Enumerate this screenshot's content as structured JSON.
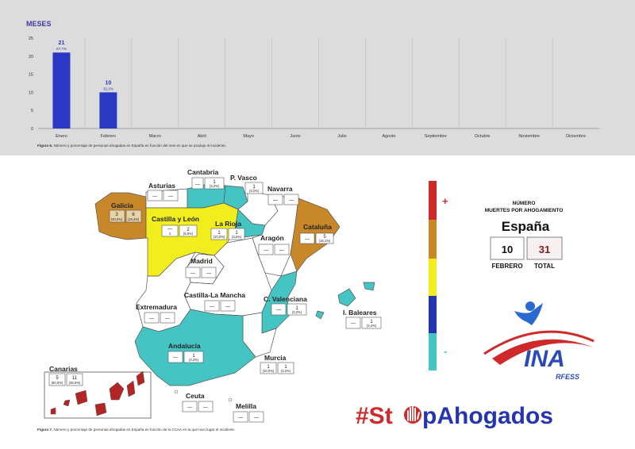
{
  "chart_data": {
    "type": "bar",
    "title": "MESES",
    "categories": [
      "Enero",
      "Febrero",
      "Marzo",
      "Abril",
      "Mayo",
      "Junio",
      "Julio",
      "Agosto",
      "Septiembre",
      "Octubre",
      "Noviembre",
      "Diciembre"
    ],
    "values": [
      21,
      10,
      null,
      null,
      null,
      null,
      null,
      null,
      null,
      null,
      null,
      null
    ],
    "percent_labels": [
      "67,7%",
      "32,3%",
      "",
      "",
      "",
      "",
      "",
      "",
      "",
      "",
      "",
      ""
    ],
    "ylim": [
      0,
      25
    ],
    "yticks": [
      "0",
      "5",
      "10",
      "15",
      "20",
      "25"
    ],
    "grid": true,
    "bar_color": "#2b38c4"
  },
  "figure6_caption": {
    "prefix": "Figura 6.",
    "text": "Número y porcentaje de personas ahogadas en España en función del mes en que se produjo el incidente."
  },
  "figure7_caption": {
    "prefix": "Figura 7.",
    "text": "Número y porcentaje de personas ahogadas en España en función de la CCAA en la que tuvo lugar el incidente."
  },
  "regions": [
    {
      "name": "Cantabria",
      "v1": "—",
      "v2": "1",
      "p2": "(3,2%)"
    },
    {
      "name": "Asturias",
      "v1": "—",
      "v2": "—"
    },
    {
      "name": "P. Vasco",
      "v2": "1",
      "p2": "(3,2%)"
    },
    {
      "name": "Navarra",
      "v1": "—",
      "v2": "—"
    },
    {
      "name": "Galicia",
      "v1": "3",
      "p1": "(30,0%)",
      "v2": "6",
      "p2": "(19,4%)"
    },
    {
      "name": "Castilla y León",
      "v1": "—",
      "v2": "2",
      "p2": "(6,5%)",
      "extra": "1"
    },
    {
      "name": "La Rioja",
      "v1": "1",
      "p1": "(10,0%)",
      "v2": "1",
      "p2": "(3,2%)"
    },
    {
      "name": "Aragón",
      "v1": "—",
      "v2": "—"
    },
    {
      "name": "Cataluña",
      "v1": "—",
      "v2": "5",
      "p2": "(16,1%)"
    },
    {
      "name": "Madrid",
      "v1": "—",
      "v2": "—"
    },
    {
      "name": "Castilla-La Mancha",
      "v1": "—",
      "v2": "—"
    },
    {
      "name": "C. Valenciana",
      "v1": "—",
      "v2": "1",
      "p2": "(3,2%)"
    },
    {
      "name": "Extremadura",
      "v1": "—",
      "v2": "—"
    },
    {
      "name": "I. Baleares",
      "v1": "—",
      "v2": "1",
      "p2": "(3,2%)"
    },
    {
      "name": "Andalucía",
      "v1": "—",
      "v2": "1",
      "p2": "(3,2%)"
    },
    {
      "name": "Murcia",
      "v1": "1",
      "p1": "(10,0%)",
      "v2": "1",
      "p2": "(3,2%)"
    },
    {
      "name": "Canarias",
      "v1": "5",
      "p1": "(50,0%)",
      "v2": "11",
      "p2": "(35,5%)"
    },
    {
      "name": "Ceuta",
      "v1": "—",
      "v2": "—"
    },
    {
      "name": "Melilla",
      "v1": "—",
      "v2": "—"
    }
  ],
  "legend": {
    "plus": "+",
    "minus": "-",
    "colors": [
      "#cf2a2a",
      "#c8882a",
      "#f2ee1e",
      "#2535b0",
      "#45c4c4"
    ]
  },
  "panel": {
    "header_line1": "NÚMERO",
    "header_line2": "MUERTES POR AHOGAMIENTO",
    "country": "España",
    "month_value": "10",
    "total_value": "31",
    "month_label": "FEBRERO",
    "total_label": "TOTAL"
  },
  "logo": {
    "line1": "INA",
    "line2": "RFESS"
  },
  "hashtag": {
    "part1": "#St",
    "part2": "pAhogados"
  }
}
